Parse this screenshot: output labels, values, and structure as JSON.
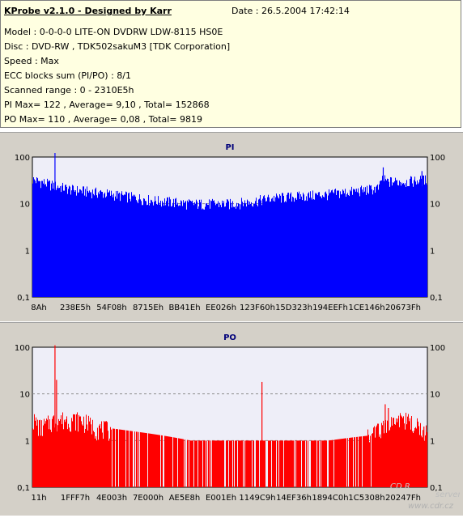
{
  "header": {
    "app_title": "KProbe v2.1.0 - Designed by Karr",
    "date": "Date : 26.5.2004 17:42:14",
    "lines": [
      "Model : 0-0-0-0 LITE-ON DVDRW LDW-8115   HS0E",
      "Disc : DVD-RW , TDK502sakuM3 [TDK Corporation]",
      "Speed : Max",
      "ECC blocks sum (PI/PO) : 8/1",
      "Scanned range : 0 - 2310E5h",
      "PI Max= 122 , Average= 9,10 , Total= 152868",
      "PO Max= 110 , Average= 0,08 , Total= 9819"
    ]
  },
  "watermark": {
    "logo_text": "CD R",
    "sub_text": "server",
    "url": "www.cdr.cz"
  },
  "colors": {
    "pi_fill": "#0000ff",
    "po_fill": "#ff0000",
    "plot_bg": "#eeeef8",
    "panel_bg": "#d4d0c8",
    "info_bg": "#ffffe1"
  },
  "chart_data": [
    {
      "type": "bar",
      "title": "PI",
      "y_scale": "log",
      "ylim": [
        0.1,
        100
      ],
      "yticks": [
        "100",
        "10",
        "1",
        "0,1"
      ],
      "grid": true,
      "x_tick_labels": [
        "8Ah",
        "238E5h",
        "54F08h",
        "8715Eh",
        "BB41Eh",
        "EE026h",
        "123F60h",
        "15D323h",
        "194EEFh",
        "1CE146h",
        "20673Fh"
      ],
      "profile": [
        {
          "x": 0,
          "y": 33
        },
        {
          "x": 0.05,
          "y": 25
        },
        {
          "x": 0.1,
          "y": 20
        },
        {
          "x": 0.15,
          "y": 18
        },
        {
          "x": 0.2,
          "y": 16
        },
        {
          "x": 0.25,
          "y": 14
        },
        {
          "x": 0.3,
          "y": 12
        },
        {
          "x": 0.35,
          "y": 11
        },
        {
          "x": 0.4,
          "y": 10
        },
        {
          "x": 0.45,
          "y": 10
        },
        {
          "x": 0.5,
          "y": 10
        },
        {
          "x": 0.55,
          "y": 11
        },
        {
          "x": 0.6,
          "y": 13
        },
        {
          "x": 0.65,
          "y": 14
        },
        {
          "x": 0.7,
          "y": 15
        },
        {
          "x": 0.75,
          "y": 16
        },
        {
          "x": 0.8,
          "y": 18
        },
        {
          "x": 0.85,
          "y": 20
        },
        {
          "x": 0.88,
          "y": 22
        },
        {
          "x": 0.885,
          "y": 35
        },
        {
          "x": 0.9,
          "y": 30
        },
        {
          "x": 0.95,
          "y": 30
        },
        {
          "x": 1,
          "y": 33
        }
      ],
      "peaks": [
        {
          "x": 0.056,
          "y": 122
        },
        {
          "x": 0.887,
          "y": 60
        },
        {
          "x": 0.985,
          "y": 50
        }
      ]
    },
    {
      "type": "bar",
      "title": "PO",
      "y_scale": "log",
      "ylim": [
        0.1,
        100
      ],
      "yticks": [
        "100",
        "10",
        "1",
        "0,1"
      ],
      "grid": true,
      "x_tick_labels": [
        "11h",
        "1FFF7h",
        "4E003h",
        "7E000h",
        "AE5E8h",
        "E001Eh",
        "1149C9h",
        "14EF36h",
        "1894C0h",
        "1C5308h",
        "20247Fh"
      ],
      "profile": [
        {
          "x": 0,
          "y": 3
        },
        {
          "x": 0.02,
          "y": 2
        },
        {
          "x": 0.06,
          "y": 3
        },
        {
          "x": 0.12,
          "y": 3
        },
        {
          "x": 0.16,
          "y": 2
        },
        {
          "x": 0.25,
          "y": 1.6
        },
        {
          "x": 0.4,
          "y": 1
        },
        {
          "x": 0.6,
          "y": 1
        },
        {
          "x": 0.75,
          "y": 1
        },
        {
          "x": 0.86,
          "y": 1.3
        },
        {
          "x": 0.9,
          "y": 2
        },
        {
          "x": 0.93,
          "y": 3
        },
        {
          "x": 1,
          "y": 1.5
        }
      ],
      "peaks": [
        {
          "x": 0.056,
          "y": 110
        },
        {
          "x": 0.06,
          "y": 20
        },
        {
          "x": 0.58,
          "y": 18
        },
        {
          "x": 0.892,
          "y": 6
        },
        {
          "x": 0.9,
          "y": 5
        },
        {
          "x": 0.99,
          "y": 2
        }
      ]
    }
  ]
}
